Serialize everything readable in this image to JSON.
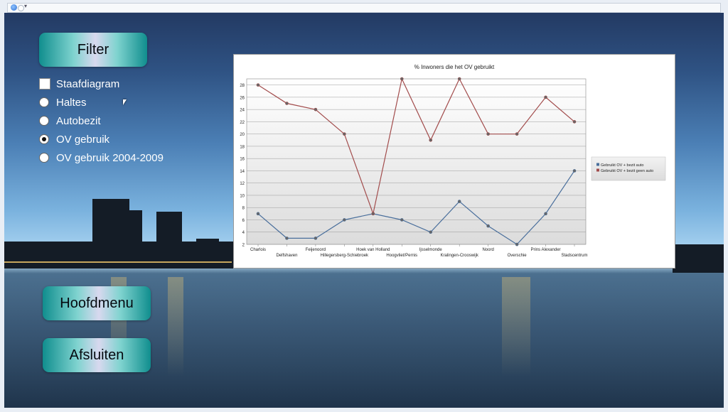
{
  "filter": {
    "title": "Filter"
  },
  "options": [
    {
      "label": "Staafdiagram",
      "kind": "checkbox",
      "selected": false
    },
    {
      "label": "Haltes",
      "kind": "radio",
      "selected": false
    },
    {
      "label": "Autobezit",
      "kind": "radio",
      "selected": false
    },
    {
      "label": "OV gebruik",
      "kind": "radio",
      "selected": true
    },
    {
      "label": "OV gebruik 2004-2009",
      "kind": "radio",
      "selected": false
    }
  ],
  "buttons": {
    "main_menu": "Hoofdmenu",
    "exit": "Afsluiten"
  },
  "colors": {
    "accent": "#108e8e",
    "series_auto": "#4a6f9c",
    "series_geen_auto": "#a24c4c"
  },
  "chart_data": {
    "type": "line",
    "title": "% Inwoners die het OV gebruikt",
    "categories": [
      "Charlois",
      "Delfshaven",
      "Feijenoord",
      "Hillegersberg-Schiebroek",
      "Hoek van Holland",
      "Hoogvliet/Pernis",
      "Ijsselmonde",
      "Kralingen-Crooswijk",
      "Noord",
      "Overschie",
      "Prins Alexander",
      "Stadscentrum"
    ],
    "series": [
      {
        "name": "Gebruikt OV + bezit auto",
        "values": [
          7,
          3,
          3,
          6,
          7,
          6,
          4,
          9,
          5,
          2,
          7,
          14
        ]
      },
      {
        "name": "Gebruikt OV + bezit geen auto",
        "values": [
          28,
          25,
          24,
          20,
          7,
          29,
          19,
          29,
          20,
          20,
          26,
          22
        ]
      }
    ],
    "ylim": [
      2,
      29
    ],
    "yticks": [
      2,
      4,
      6,
      8,
      10,
      12,
      14,
      16,
      18,
      20,
      22,
      24,
      26,
      28
    ],
    "grid": true,
    "legend_position": "right"
  }
}
